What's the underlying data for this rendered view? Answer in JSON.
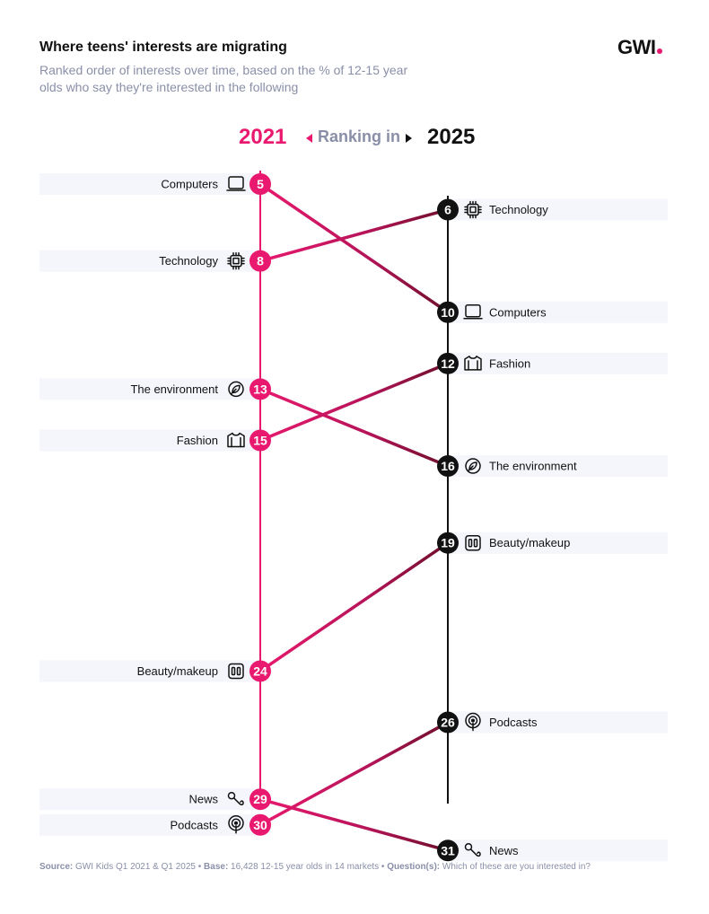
{
  "header": {
    "title": "Where teens' interests are migrating",
    "subtitle": "Ranked order of interests over time, based on the % of 12-15 year olds who say they're interested in the following",
    "logo_text": "GWI",
    "year_left": "2021",
    "year_right": "2025",
    "ranking_label": "Ranking in"
  },
  "footer": {
    "source_label": "Source:",
    "source_text": " GWI Kids Q1 2021 & Q1 2025 • ",
    "base_label": "Base:",
    "base_text": " 16,428 12-15 year olds in 14 markets • ",
    "question_label": "Question(s):",
    "question_text": " Which of these are you interested in?"
  },
  "colors": {
    "pink": "#e8196e",
    "black": "#111111",
    "dark_red": "#6e0f2c",
    "band": "#f4f6fb"
  },
  "chart_data": {
    "type": "slope",
    "title": "Where teens' interests are migrating",
    "x": [
      "2021",
      "2025"
    ],
    "y_axis": "rank (lower is higher)",
    "ylim": [
      4,
      32
    ],
    "series": [
      {
        "name": "Computers",
        "icon": "laptop-icon",
        "rank_2021": 5,
        "rank_2025": 10
      },
      {
        "name": "Technology",
        "icon": "chip-icon",
        "rank_2021": 8,
        "rank_2025": 6
      },
      {
        "name": "The environment",
        "icon": "leaf-icon",
        "rank_2021": 13,
        "rank_2025": 16
      },
      {
        "name": "Fashion",
        "icon": "shirt-icon",
        "rank_2021": 15,
        "rank_2025": 12
      },
      {
        "name": "Beauty/makeup",
        "icon": "makeup-icon",
        "rank_2021": 24,
        "rank_2025": 19
      },
      {
        "name": "News",
        "icon": "microphone-icon",
        "rank_2021": 29,
        "rank_2025": 31
      },
      {
        "name": "Podcasts",
        "icon": "podcast-icon",
        "rank_2021": 30,
        "rank_2025": 26
      }
    ]
  }
}
